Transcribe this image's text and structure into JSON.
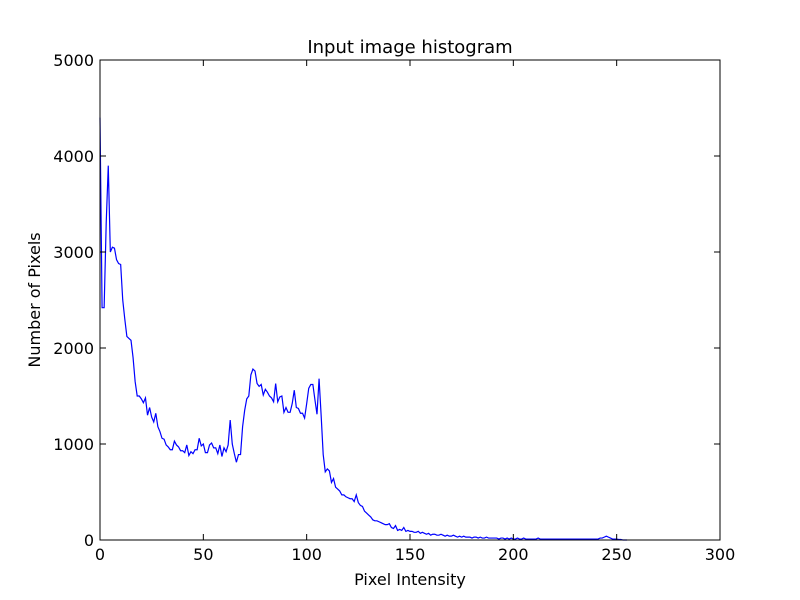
{
  "chart_data": {
    "type": "line",
    "title": "Input image histogram",
    "xlabel": "Pixel Intensity",
    "ylabel": "Number of Pixels",
    "x": [
      0,
      1,
      2,
      3,
      4,
      5,
      6,
      7,
      8,
      9,
      10,
      11,
      12,
      13,
      14,
      15,
      16,
      17,
      18,
      19,
      20,
      21,
      22,
      23,
      24,
      25,
      26,
      27,
      28,
      29,
      30,
      31,
      32,
      33,
      34,
      35,
      36,
      37,
      38,
      39,
      40,
      41,
      42,
      43,
      44,
      45,
      46,
      47,
      48,
      49,
      50,
      51,
      52,
      53,
      54,
      55,
      56,
      57,
      58,
      59,
      60,
      61,
      62,
      63,
      64,
      65,
      66,
      67,
      68,
      69,
      70,
      71,
      72,
      73,
      74,
      75,
      76,
      77,
      78,
      79,
      80,
      81,
      82,
      83,
      84,
      85,
      86,
      87,
      88,
      89,
      90,
      91,
      92,
      93,
      94,
      95,
      96,
      97,
      98,
      99,
      100,
      101,
      102,
      103,
      104,
      105,
      106,
      107,
      108,
      109,
      110,
      111,
      112,
      113,
      114,
      115,
      116,
      117,
      118,
      119,
      120,
      121,
      122,
      123,
      124,
      125,
      126,
      127,
      128,
      129,
      130,
      131,
      132,
      133,
      134,
      135,
      136,
      137,
      138,
      139,
      140,
      141,
      142,
      143,
      144,
      145,
      146,
      147,
      148,
      149,
      150,
      151,
      152,
      153,
      154,
      155,
      156,
      157,
      158,
      159,
      160,
      161,
      162,
      163,
      164,
      165,
      166,
      167,
      168,
      169,
      170,
      171,
      172,
      173,
      174,
      175,
      176,
      177,
      178,
      179,
      180,
      181,
      182,
      183,
      184,
      185,
      186,
      187,
      188,
      189,
      190,
      191,
      192,
      193,
      194,
      195,
      196,
      197,
      198,
      199,
      200,
      201,
      202,
      203,
      204,
      205,
      206,
      207,
      208,
      209,
      210,
      211,
      212,
      213,
      214,
      215,
      216,
      217,
      218,
      219,
      220,
      221,
      222,
      223,
      224,
      225,
      226,
      227,
      228,
      229,
      230,
      231,
      232,
      233,
      234,
      235,
      236,
      237,
      238,
      239,
      240,
      241,
      242,
      243,
      244,
      245,
      246,
      247,
      248,
      249,
      250,
      251,
      252,
      253,
      254,
      255
    ],
    "series": [
      {
        "color": "#0000ff",
        "values": [
          4400,
          2420,
          2420,
          3300,
          3900,
          3000,
          3050,
          3040,
          2920,
          2880,
          2870,
          2500,
          2300,
          2120,
          2100,
          2080,
          1900,
          1650,
          1500,
          1500,
          1470,
          1430,
          1480,
          1300,
          1380,
          1280,
          1230,
          1320,
          1180,
          1130,
          1060,
          1050,
          990,
          970,
          940,
          940,
          1030,
          990,
          970,
          930,
          930,
          910,
          990,
          880,
          920,
          900,
          940,
          940,
          1060,
          980,
          1000,
          910,
          910,
          990,
          1010,
          960,
          960,
          900,
          990,
          870,
          960,
          920,
          990,
          1250,
          1000,
          900,
          810,
          890,
          890,
          1180,
          1350,
          1470,
          1500,
          1720,
          1780,
          1760,
          1630,
          1600,
          1620,
          1510,
          1570,
          1540,
          1500,
          1480,
          1440,
          1630,
          1440,
          1490,
          1500,
          1330,
          1380,
          1330,
          1330,
          1420,
          1560,
          1380,
          1370,
          1320,
          1320,
          1270,
          1420,
          1580,
          1620,
          1620,
          1460,
          1310,
          1680,
          1300,
          890,
          710,
          740,
          720,
          600,
          640,
          550,
          530,
          510,
          470,
          470,
          450,
          440,
          430,
          430,
          400,
          470,
          390,
          360,
          350,
          300,
          280,
          260,
          240,
          210,
          200,
          200,
          190,
          180,
          170,
          160,
          160,
          170,
          130,
          120,
          150,
          100,
          110,
          100,
          130,
          90,
          100,
          90,
          90,
          80,
          80,
          90,
          70,
          80,
          70,
          60,
          70,
          50,
          60,
          60,
          50,
          50,
          60,
          50,
          40,
          50,
          40,
          40,
          50,
          40,
          30,
          40,
          30,
          40,
          30,
          30,
          30,
          20,
          30,
          30,
          20,
          30,
          20,
          20,
          30,
          20,
          20,
          20,
          20,
          20,
          10,
          20,
          20,
          10,
          20,
          10,
          20,
          10,
          10,
          20,
          10,
          10,
          20,
          10,
          10,
          10,
          10,
          10,
          10,
          20,
          10,
          10,
          10,
          10,
          10,
          10,
          10,
          10,
          10,
          10,
          10,
          10,
          10,
          10,
          10,
          10,
          10,
          10,
          10,
          10,
          10,
          10,
          10,
          10,
          10,
          10,
          10,
          10,
          10,
          20,
          20,
          30,
          40,
          30,
          20,
          10,
          10,
          10,
          5,
          5,
          0,
          0,
          0
        ]
      }
    ],
    "xlim": [
      0,
      300
    ],
    "xticks": [
      0,
      50,
      100,
      150,
      200,
      250,
      300
    ],
    "ylim": [
      0,
      5000
    ],
    "yticks": [
      0,
      1000,
      2000,
      3000,
      4000,
      5000
    ]
  }
}
